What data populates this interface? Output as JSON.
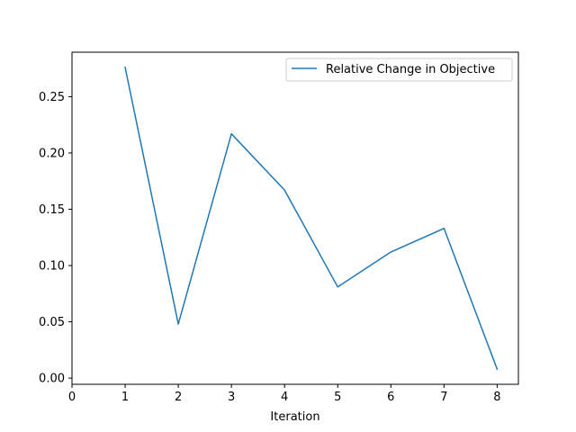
{
  "chart_data": {
    "type": "line",
    "title": "",
    "xlabel": "Iteration",
    "ylabel": "",
    "xlim": [
      0,
      8.4
    ],
    "ylim": [
      -0.0055,
      0.2895
    ],
    "x_ticks": [
      0,
      1,
      2,
      3,
      4,
      5,
      6,
      7,
      8
    ],
    "y_ticks": [
      0.0,
      0.05,
      0.1,
      0.15,
      0.2,
      0.25
    ],
    "y_tick_labels": [
      "0.00",
      "0.05",
      "0.10",
      "0.15",
      "0.20",
      "0.25"
    ],
    "x_tick_labels": [
      "0",
      "1",
      "2",
      "3",
      "4",
      "5",
      "6",
      "7",
      "8"
    ],
    "grid": false,
    "legend": {
      "position": "upper right"
    },
    "series": [
      {
        "name": "Relative Change in Objective",
        "color": "#1f77b4",
        "x": [
          1,
          2,
          3,
          4,
          5,
          6,
          7,
          8
        ],
        "y": [
          0.276,
          0.048,
          0.217,
          0.167,
          0.081,
          0.112,
          0.133,
          0.008
        ]
      }
    ]
  }
}
